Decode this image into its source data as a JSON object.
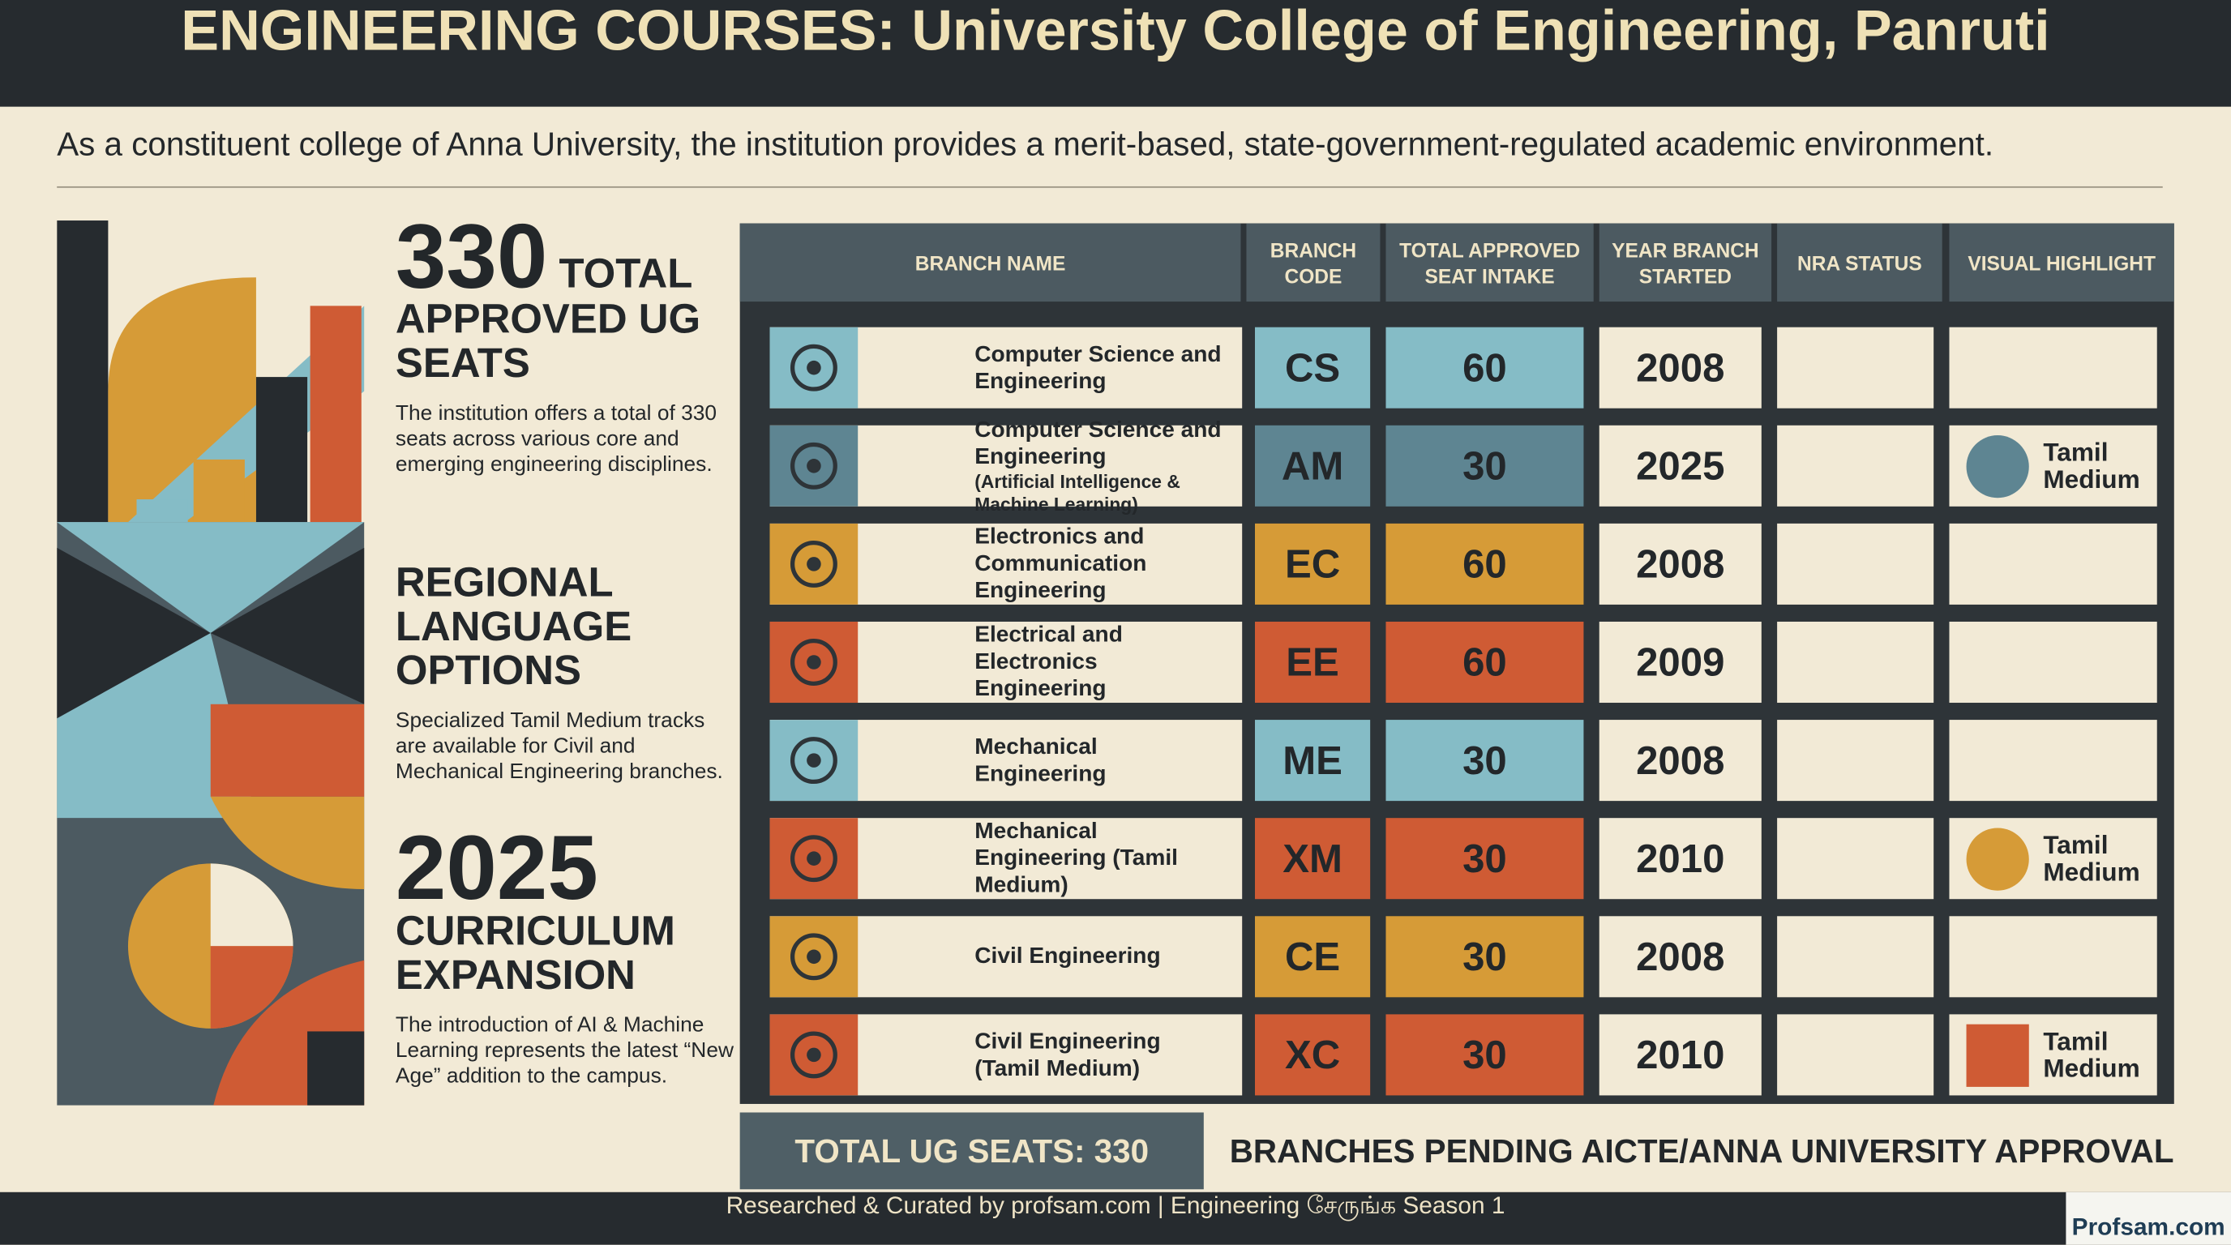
{
  "header": {
    "title": "ENGINEERING COURSES: University College of Engineering, Panruti",
    "subtitle": "As a constituent college of Anna University, the institution provides a merit-based, state-government-regulated academic environment."
  },
  "highlights": [
    {
      "number": "330",
      "heading": "TOTAL APPROVED UG SEATS",
      "text": "The institution offers a total of 330 seats across various core and emerging engineering disciplines."
    },
    {
      "heading": "REGIONAL LANGUAGE OPTIONS",
      "text": "Specialized Tamil Medium tracks are available for Civil and Mechanical Engineering branches."
    },
    {
      "number": "2025",
      "heading": "CURRICULUM EXPANSION",
      "text": "The introduction of AI & Machine Learning represents the latest “New Age” addition to the campus."
    }
  ],
  "table": {
    "columns": [
      "BRANCH NAME",
      "BRANCH CODE",
      "TOTAL APPROVED SEAT INTAKE",
      "YEAR BRANCH STARTED",
      "NRA STATUS",
      "VISUAL HIGHLIGHT"
    ],
    "rows": [
      {
        "name": "Computer Science and Engineering",
        "code": "CS",
        "seats": 60,
        "year": 2008,
        "color": "#85bcc6"
      },
      {
        "name": "Computer Science and Engineering",
        "detail": "(Artificial Intelligence & Machine Learning)",
        "code": "AM",
        "seats": 30,
        "year": 2025,
        "color": "#5e8592",
        "highlight": {
          "label": "Tamil Medium",
          "color": "#5e8592",
          "shape": "circle"
        }
      },
      {
        "name": "Electronics and Communication Engineering",
        "code": "EC",
        "seats": 60,
        "year": 2008,
        "color": "#d69b37"
      },
      {
        "name": "Electrical and Electronics Engineering",
        "code": "EE",
        "seats": 60,
        "year": 2009,
        "color": "#cf5b34"
      },
      {
        "name": "Mechanical Engineering",
        "code": "ME",
        "seats": 30,
        "year": 2008,
        "color": "#85bcc6"
      },
      {
        "name": "Mechanical Engineering (Tamil Medium)",
        "code": "XM",
        "seats": 30,
        "year": 2010,
        "color": "#cf5b34",
        "highlight": {
          "label": "Tamil Medium",
          "color": "#d69b37",
          "shape": "circle"
        }
      },
      {
        "name": "Civil Engineering",
        "code": "CE",
        "seats": 30,
        "year": 2008,
        "color": "#d69b37"
      },
      {
        "name": "Civil Engineering (Tamil Medium)",
        "code": "XC",
        "seats": 30,
        "year": 2010,
        "color": "#cf5b34",
        "highlight": {
          "label": "Tamil Medium",
          "color": "#cf5b34",
          "shape": "square"
        }
      }
    ]
  },
  "footer": {
    "total": "TOTAL UG SEATS: 330",
    "pending": "BRANCHES PENDING AICTE/ANNA UNIVERSITY APPROVAL",
    "credit": "Researched & Curated by profsam.com | Engineering சேருங்க Season 1",
    "logo": "Profsam.com"
  }
}
